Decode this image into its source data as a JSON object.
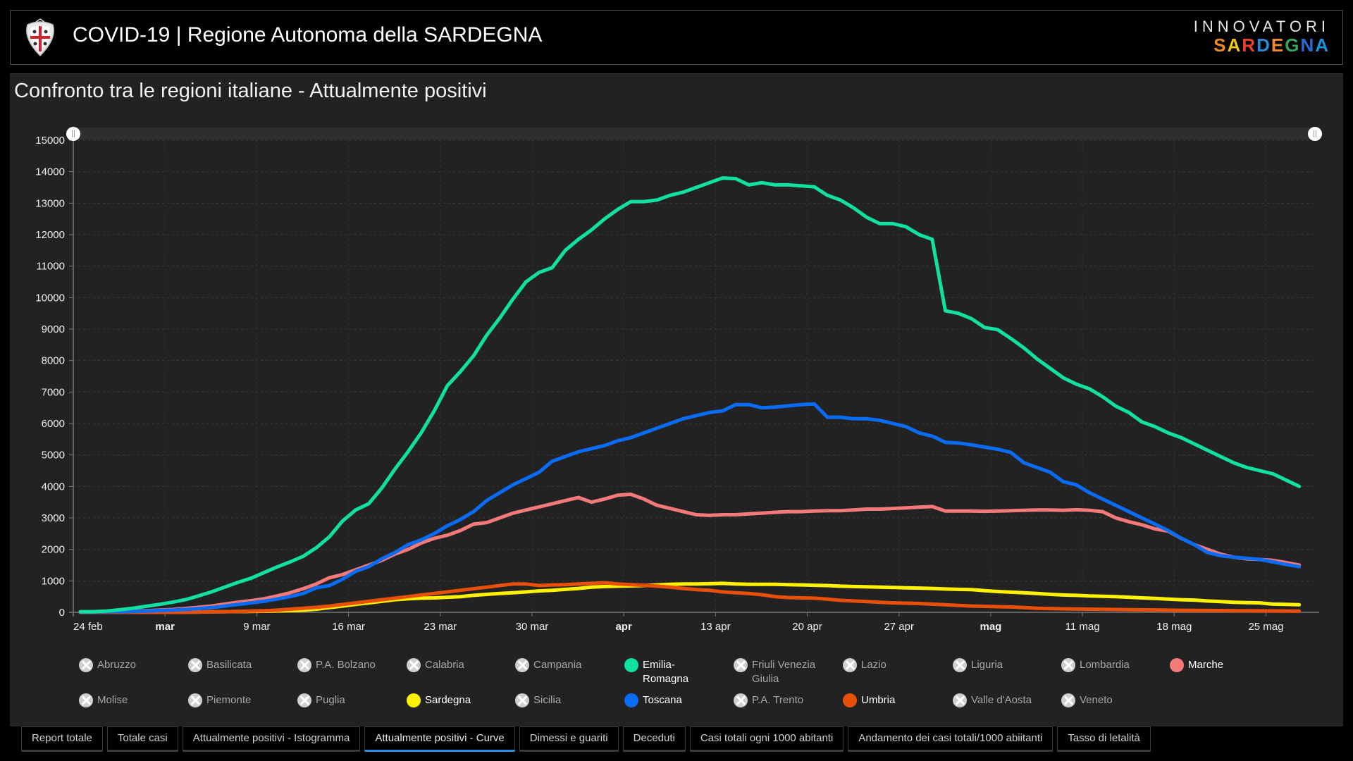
{
  "header": {
    "title": "COVID-19 | Regione Autonoma della SARDEGNA",
    "brand_top": "INNOVATORI",
    "brand_bottom_letters": [
      "S",
      "A",
      "R",
      "D",
      "E",
      "G",
      "N",
      "A"
    ],
    "brand_bottom_colors": [
      "#f08a24",
      "#f0c419",
      "#e8402a",
      "#2a8ad8",
      "#f08a24",
      "#3aa35c",
      "#2a6ad8",
      "#1e90d8"
    ]
  },
  "panel": {
    "title": "Confronto tra le regioni italiane - Attualmente positivi"
  },
  "chart_data": {
    "type": "line",
    "title": "Confronto tra le regioni italiane - Attualmente positivi",
    "xlabel": "",
    "ylabel": "",
    "x_start": "24 feb",
    "x_end": "27 mag",
    "x_unit": "day",
    "ylim": [
      0,
      15000
    ],
    "yticks": [
      0,
      1000,
      2000,
      3000,
      4000,
      5000,
      6000,
      7000,
      8000,
      9000,
      10000,
      11000,
      12000,
      13000,
      14000,
      15000
    ],
    "xticks": [
      {
        "day": 0,
        "label": "24 feb",
        "bold": false
      },
      {
        "day": 7,
        "label": "mar",
        "bold": true
      },
      {
        "day": 14,
        "label": "9 mar",
        "bold": false
      },
      {
        "day": 21,
        "label": "16 mar",
        "bold": false
      },
      {
        "day": 28,
        "label": "23 mar",
        "bold": false
      },
      {
        "day": 35,
        "label": "30 mar",
        "bold": false
      },
      {
        "day": 42,
        "label": "apr",
        "bold": true
      },
      {
        "day": 49,
        "label": "13 apr",
        "bold": false
      },
      {
        "day": 56,
        "label": "20 apr",
        "bold": false
      },
      {
        "day": 63,
        "label": "27 apr",
        "bold": false
      },
      {
        "day": 70,
        "label": "mag",
        "bold": true
      },
      {
        "day": 77,
        "label": "11 mag",
        "bold": false
      },
      {
        "day": 84,
        "label": "18 mag",
        "bold": false
      },
      {
        "day": 91,
        "label": "25 mag",
        "bold": false
      }
    ],
    "grid": true,
    "legend_position": "bottom",
    "series": [
      {
        "name": "Emilia-Romagna",
        "color": "#12e0a0",
        "values": [
          20,
          20,
          40,
          80,
          130,
          190,
          250,
          320,
          400,
          520,
          650,
          800,
          950,
          1080,
          1260,
          1440,
          1600,
          1780,
          2050,
          2400,
          2900,
          3250,
          3450,
          3950,
          4550,
          5100,
          5700,
          6400,
          7200,
          7650,
          8150,
          8800,
          9350,
          9950,
          10500,
          10800,
          10950,
          11500,
          11850,
          12150,
          12500,
          12800,
          13050,
          13050,
          13100,
          13250,
          13350,
          13500,
          13650,
          13800,
          13780,
          13580,
          13650,
          13580,
          13580,
          13550,
          13520,
          13250,
          13100,
          12850,
          12550,
          12350,
          12350,
          12250,
          12000,
          11850,
          9580,
          9500,
          9330,
          9050,
          8980,
          8700,
          8400,
          8050,
          7750,
          7450,
          7250,
          7100,
          6850,
          6550,
          6350,
          6050,
          5900,
          5700,
          5550,
          5350,
          5150,
          4950,
          4750,
          4600,
          4500,
          4400,
          4200,
          4000
        ]
      },
      {
        "name": "Toscana",
        "color": "#0a6cf5",
        "values": [
          10,
          10,
          15,
          20,
          30,
          40,
          55,
          70,
          90,
          120,
          150,
          200,
          250,
          300,
          350,
          420,
          500,
          600,
          780,
          850,
          1050,
          1300,
          1450,
          1700,
          1900,
          2150,
          2300,
          2500,
          2750,
          2950,
          3200,
          3550,
          3800,
          4050,
          4250,
          4450,
          4800,
          4950,
          5100,
          5200,
          5300,
          5450,
          5550,
          5700,
          5850,
          6000,
          6150,
          6250,
          6350,
          6400,
          6600,
          6600,
          6500,
          6520,
          6560,
          6600,
          6620,
          6200,
          6200,
          6150,
          6150,
          6100,
          6000,
          5900,
          5700,
          5600,
          5400,
          5380,
          5320,
          5250,
          5180,
          5080,
          4750,
          4600,
          4450,
          4150,
          4050,
          3800,
          3600,
          3400,
          3200,
          3000,
          2800,
          2600,
          2350,
          2150,
          1900,
          1800,
          1750,
          1720,
          1680,
          1600,
          1520,
          1450
        ]
      },
      {
        "name": "Marche",
        "color": "#f47a7a",
        "values": [
          10,
          10,
          20,
          30,
          40,
          50,
          70,
          90,
          120,
          160,
          200,
          260,
          320,
          370,
          430,
          520,
          620,
          750,
          900,
          1100,
          1200,
          1350,
          1500,
          1650,
          1850,
          2000,
          2200,
          2350,
          2450,
          2600,
          2800,
          2850,
          3000,
          3150,
          3250,
          3350,
          3450,
          3550,
          3650,
          3500,
          3600,
          3720,
          3750,
          3600,
          3400,
          3300,
          3200,
          3100,
          3080,
          3100,
          3100,
          3130,
          3150,
          3180,
          3200,
          3200,
          3220,
          3230,
          3230,
          3250,
          3280,
          3280,
          3300,
          3320,
          3340,
          3360,
          3220,
          3220,
          3220,
          3210,
          3220,
          3230,
          3240,
          3250,
          3250,
          3240,
          3260,
          3240,
          3200,
          3000,
          2880,
          2780,
          2650,
          2580,
          2350,
          2150,
          2000,
          1850,
          1750,
          1700,
          1680,
          1650,
          1580,
          1500
        ]
      },
      {
        "name": "Sardegna",
        "color": "#fff200",
        "values": [
          0,
          0,
          0,
          0,
          0,
          0,
          0,
          0,
          5,
          10,
          15,
          20,
          25,
          30,
          35,
          45,
          55,
          70,
          100,
          150,
          200,
          250,
          300,
          350,
          400,
          430,
          450,
          460,
          480,
          500,
          540,
          570,
          600,
          620,
          650,
          680,
          700,
          730,
          760,
          800,
          820,
          830,
          840,
          850,
          870,
          890,
          900,
          900,
          910,
          920,
          900,
          890,
          890,
          890,
          880,
          870,
          860,
          850,
          830,
          820,
          810,
          800,
          790,
          780,
          770,
          760,
          740,
          730,
          720,
          690,
          660,
          640,
          620,
          600,
          570,
          550,
          540,
          520,
          510,
          500,
          480,
          460,
          440,
          420,
          400,
          390,
          360,
          340,
          320,
          310,
          300,
          260,
          250,
          240
        ]
      },
      {
        "name": "Umbria",
        "color": "#e8500a",
        "values": [
          0,
          0,
          0,
          0,
          0,
          0,
          0,
          0,
          5,
          10,
          15,
          20,
          30,
          40,
          50,
          70,
          100,
          130,
          160,
          200,
          250,
          300,
          350,
          400,
          450,
          500,
          550,
          600,
          650,
          700,
          750,
          800,
          850,
          900,
          900,
          850,
          870,
          880,
          900,
          920,
          940,
          900,
          880,
          860,
          830,
          800,
          760,
          720,
          700,
          650,
          620,
          600,
          560,
          500,
          470,
          460,
          450,
          420,
          380,
          360,
          340,
          320,
          300,
          290,
          280,
          260,
          240,
          220,
          200,
          190,
          180,
          170,
          150,
          130,
          120,
          110,
          105,
          100,
          95,
          90,
          85,
          80,
          75,
          70,
          65,
          60,
          58,
          55,
          52,
          50,
          48,
          45,
          42,
          40
        ]
      }
    ]
  },
  "legend": {
    "rows": [
      [
        {
          "name": "Abruzzo",
          "active": false
        },
        {
          "name": "Basilicata",
          "active": false
        },
        {
          "name": "P.A. Bolzano",
          "active": false
        },
        {
          "name": "Calabria",
          "active": false
        },
        {
          "name": "Campania",
          "active": false
        },
        {
          "name": "Emilia-Romagna",
          "active": true,
          "color": "#12e0a0"
        },
        {
          "name": "Friuli Venezia Giulia",
          "active": false
        },
        {
          "name": "Lazio",
          "active": false
        },
        {
          "name": "Liguria",
          "active": false
        },
        {
          "name": "Lombardia",
          "active": false
        },
        {
          "name": "Marche",
          "active": true,
          "color": "#f47a7a"
        }
      ],
      [
        {
          "name": "Molise",
          "active": false
        },
        {
          "name": "Piemonte",
          "active": false
        },
        {
          "name": "Puglia",
          "active": false
        },
        {
          "name": "Sardegna",
          "active": true,
          "color": "#fff200"
        },
        {
          "name": "Sicilia",
          "active": false
        },
        {
          "name": "Toscana",
          "active": true,
          "color": "#0a6cf5"
        },
        {
          "name": "P.A. Trento",
          "active": false
        },
        {
          "name": "Umbria",
          "active": true,
          "color": "#e8500a"
        },
        {
          "name": "Valle d'Aosta",
          "active": false
        },
        {
          "name": "Veneto",
          "active": false
        }
      ]
    ]
  },
  "tabs": [
    {
      "label": "Report totale",
      "active": false
    },
    {
      "label": "Totale casi",
      "active": false
    },
    {
      "label": "Attualmente positivi - Istogramma",
      "active": false
    },
    {
      "label": "Attualmente positivi - Curve",
      "active": true
    },
    {
      "label": "Dimessi e guariti",
      "active": false
    },
    {
      "label": "Deceduti",
      "active": false
    },
    {
      "label": "Casi totali ogni 1000 abitanti",
      "active": false
    },
    {
      "label": "Andamento dei casi totali/1000 abiitanti",
      "active": false
    },
    {
      "label": "Tasso di letalità",
      "active": false
    }
  ],
  "colors": {
    "accent": "#2b8fe8",
    "panel_bg": "#222222",
    "page_bg": "#000000"
  }
}
